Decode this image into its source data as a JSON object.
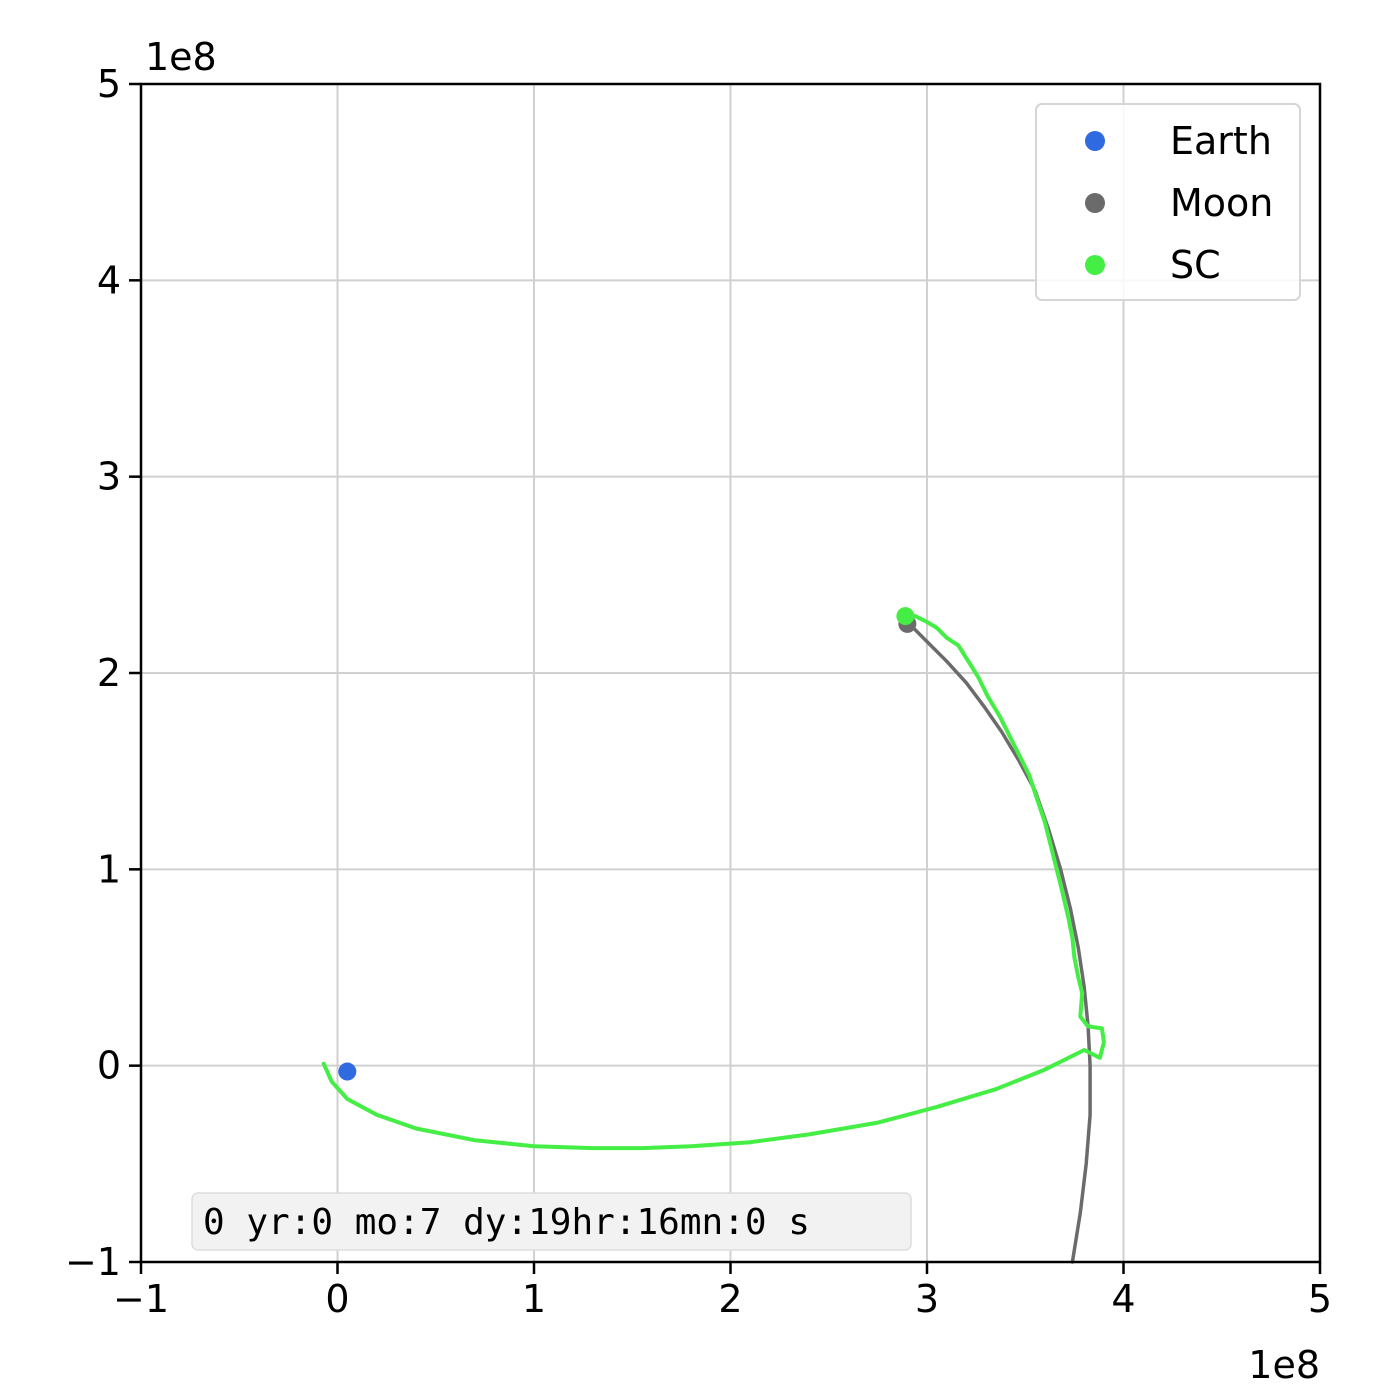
{
  "chart_data": {
    "type": "line",
    "xlim": [
      -1,
      5
    ],
    "ylim": [
      -1,
      5
    ],
    "x_ticks": [
      "−1",
      "0",
      "1",
      "2",
      "3",
      "4",
      "5"
    ],
    "y_ticks": [
      "−1",
      "0",
      "1",
      "2",
      "3",
      "4",
      "5"
    ],
    "x_tick_values": [
      -1,
      0,
      1,
      2,
      3,
      4,
      5
    ],
    "y_tick_values": [
      -1,
      0,
      1,
      2,
      3,
      4,
      5
    ],
    "x_offset_label": "1e8",
    "y_offset_label": "1e8",
    "grid": true,
    "legend_position": "top-right",
    "time_label": "0 yr:0 mo:7 dy:19hr:16mn:0 s",
    "series": [
      {
        "name": "Moon",
        "color": "#6b6b6b",
        "x": [
          3.74,
          3.78,
          3.81,
          3.83,
          3.83,
          3.82,
          3.8,
          3.77,
          3.73,
          3.68,
          3.62,
          3.55,
          3.47,
          3.38,
          3.29,
          3.2,
          3.1,
          3.0,
          2.92,
          2.88
        ],
        "y": [
          -1.0,
          -0.75,
          -0.5,
          -0.25,
          0.0,
          0.2,
          0.4,
          0.6,
          0.8,
          1.0,
          1.2,
          1.4,
          1.55,
          1.7,
          1.83,
          1.95,
          2.06,
          2.16,
          2.24,
          2.27
        ]
      },
      {
        "name": "SC",
        "color": "#44ee44",
        "x": [
          -0.07,
          -0.03,
          0.05,
          0.2,
          0.4,
          0.7,
          1.0,
          1.3,
          1.55,
          1.8,
          2.1,
          2.4,
          2.75,
          3.05,
          3.35,
          3.6,
          3.8,
          3.88,
          3.9,
          3.89,
          3.82,
          3.78,
          3.79,
          3.77,
          3.75,
          3.74,
          3.72,
          3.69,
          3.66,
          3.63,
          3.6,
          3.56,
          3.52,
          3.47,
          3.42,
          3.37,
          3.31,
          3.26,
          3.21,
          3.16,
          3.1,
          3.05,
          3.0,
          2.94,
          2.88
        ],
        "y": [
          0.01,
          -0.08,
          -0.17,
          -0.25,
          -0.32,
          -0.38,
          -0.41,
          -0.42,
          -0.42,
          -0.41,
          -0.39,
          -0.35,
          -0.29,
          -0.21,
          -0.12,
          -0.02,
          0.08,
          0.04,
          0.12,
          0.19,
          0.2,
          0.25,
          0.37,
          0.45,
          0.55,
          0.65,
          0.75,
          0.88,
          1.0,
          1.12,
          1.24,
          1.36,
          1.48,
          1.58,
          1.68,
          1.78,
          1.88,
          1.98,
          2.06,
          2.14,
          2.18,
          2.23,
          2.26,
          2.29,
          2.29
        ]
      }
    ],
    "points": [
      {
        "name": "Earth",
        "color": "#2f6ae0",
        "x": 0.05,
        "y": -0.03
      },
      {
        "name": "Moon",
        "color": "#6b6b6b",
        "x": 2.9,
        "y": 2.25
      },
      {
        "name": "SC",
        "color": "#44ee44",
        "x": 2.89,
        "y": 2.29
      }
    ],
    "legend": [
      {
        "label": "Earth",
        "color": "#2f6ae0"
      },
      {
        "label": "Moon",
        "color": "#6b6b6b"
      },
      {
        "label": "SC",
        "color": "#44ee44"
      }
    ]
  }
}
